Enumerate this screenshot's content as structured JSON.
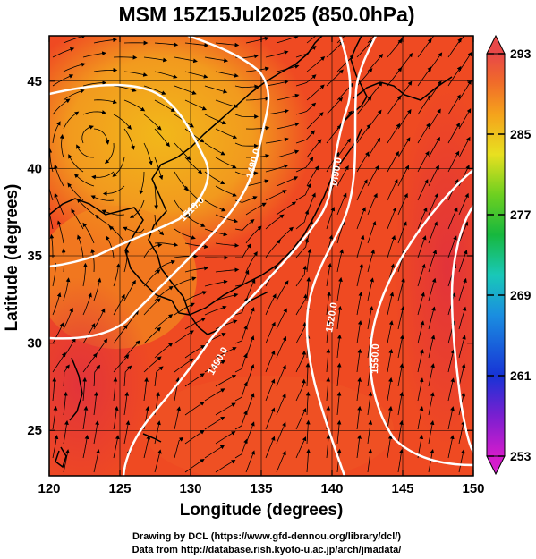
{
  "title": "MSM 15Z15Jul2025 (850.0hPa)",
  "xlabel": "Longitude (degrees)",
  "ylabel": "Latitude  (degrees)",
  "credits": [
    "Drawing by DCL (https://www.gfd-dennou.org/library/dcl/)",
    "Data from http://database.rish.kyoto-u.ac.jp/arch/jmadata/"
  ],
  "chart_data": {
    "type": "heatmap",
    "description_fields": "temperature shading with streamlines and geopotential height contours",
    "x_ticks": [
      "120",
      "125",
      "130",
      "135",
      "140",
      "145",
      "150"
    ],
    "y_ticks": [
      "25",
      "30",
      "35",
      "40",
      "45"
    ],
    "xlim": [
      120,
      150
    ],
    "ylim": [
      22.4,
      47.6
    ],
    "colorbar": {
      "min": 253,
      "max": 293,
      "tick_labels": [
        "293",
        "285",
        "277",
        "269",
        "261",
        "253"
      ],
      "colors": [
        "#d41ccc",
        "#7a1fd0",
        "#1733d6",
        "#1a8ee0",
        "#19c8b8",
        "#17b83e",
        "#6ed020",
        "#e8e020",
        "#f5a21c",
        "#f06a2a",
        "#e84848"
      ]
    },
    "contour_labels": [
      "1490.0",
      "1490.0",
      "1520.0",
      "1490.0",
      "1550.0",
      "1510.0"
    ],
    "colors": {
      "warm_field": "#ef4a22",
      "cool_field": "#f39a1c",
      "contour": "#ffffff",
      "streamline": "#000000"
    }
  }
}
